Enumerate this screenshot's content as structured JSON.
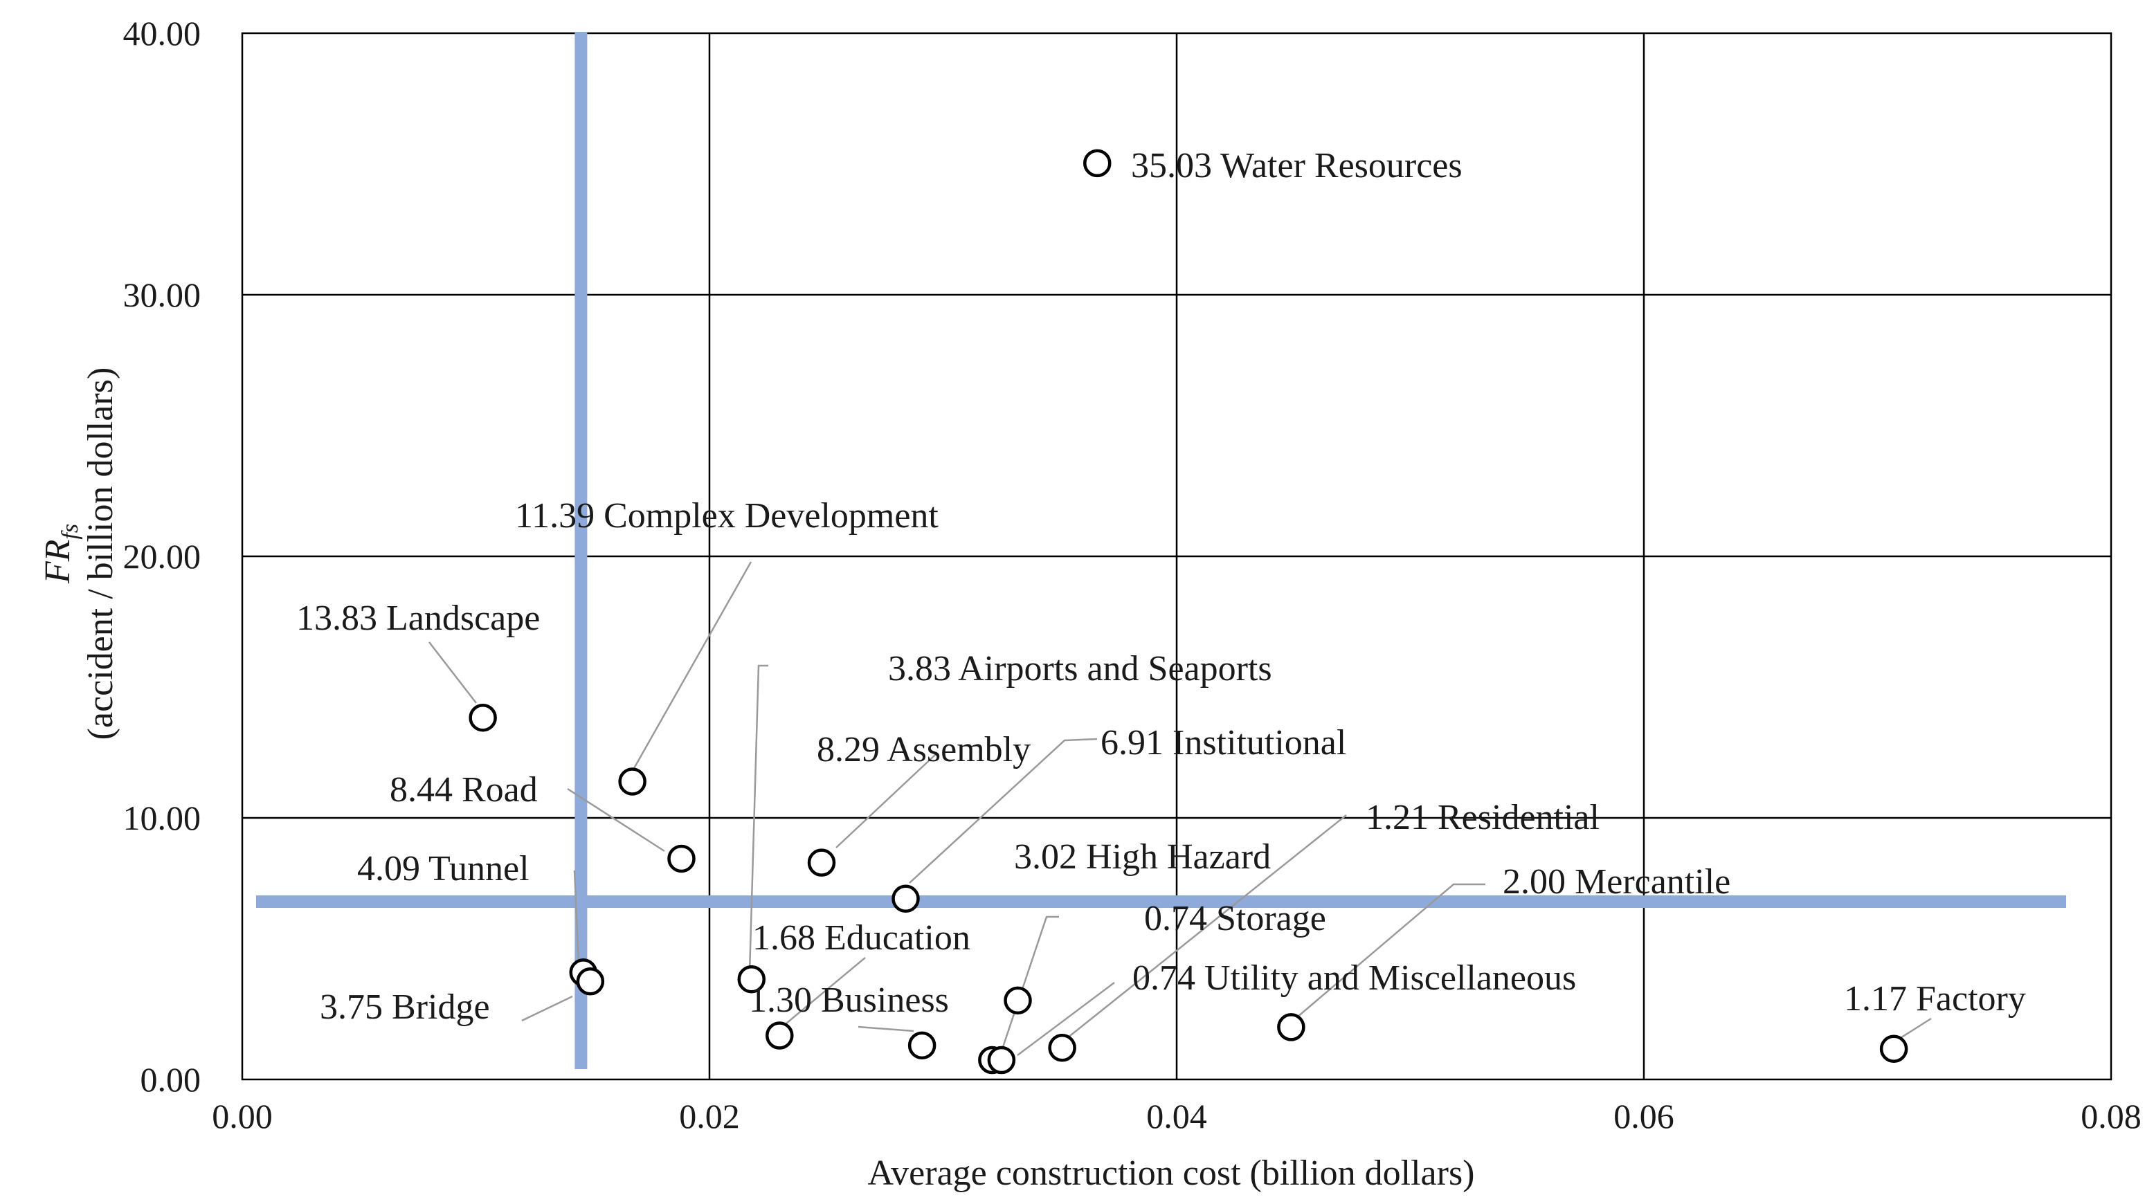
{
  "chart_data": {
    "type": "scatter",
    "title": "",
    "xlabel": "Average construction cost (billion dollars)",
    "ylabel_main": "FR",
    "ylabel_sub": "fs",
    "ylabel_unit": "(accident / billion dollars)",
    "xlim": [
      0,
      0.08
    ],
    "ylim": [
      0,
      40
    ],
    "x_ticks": [
      "0.00",
      "0.02",
      "0.04",
      "0.06",
      "0.08"
    ],
    "y_ticks": [
      "0.00",
      "10.00",
      "20.00",
      "30.00",
      "40.00"
    ],
    "grid": true,
    "reference_lines": {
      "x": 0.0145,
      "y": 6.8,
      "color": "#8eaadb"
    },
    "points": [
      {
        "label": "35.03 Water Resources",
        "value": 35.03,
        "x": 0.0366,
        "y": 35.03
      },
      {
        "label": "11.39 Complex Development",
        "value": 11.39,
        "x": 0.0167,
        "y": 11.39
      },
      {
        "label": "13.83 Landscape",
        "value": 13.83,
        "x": 0.0103,
        "y": 13.83
      },
      {
        "label": "3.83 Airports and Seaports",
        "value": 3.83,
        "x": 0.0218,
        "y": 3.83
      },
      {
        "label": "8.29 Assembly",
        "value": 8.29,
        "x": 0.0248,
        "y": 8.29
      },
      {
        "label": "6.91 Institutional",
        "value": 6.91,
        "x": 0.0284,
        "y": 6.91
      },
      {
        "label": "8.44 Road",
        "value": 8.44,
        "x": 0.0188,
        "y": 8.44
      },
      {
        "label": "1.21 Residential",
        "value": 1.21,
        "x": 0.0351,
        "y": 1.21
      },
      {
        "label": "4.09 Tunnel",
        "value": 4.09,
        "x": 0.0146,
        "y": 4.09
      },
      {
        "label": "3.02 High Hazard",
        "value": 3.02,
        "x": 0.0332,
        "y": 3.02
      },
      {
        "label": "2.00 Mercantile",
        "value": 2.0,
        "x": 0.0449,
        "y": 2.0
      },
      {
        "label": "0.74 Storage",
        "value": 0.74,
        "x": 0.0321,
        "y": 0.74
      },
      {
        "label": "1.68 Education",
        "value": 1.68,
        "x": 0.023,
        "y": 1.68
      },
      {
        "label": "0.74 Utility and Miscellaneous",
        "value": 0.74,
        "x": 0.0325,
        "y": 0.74
      },
      {
        "label": "1.30 Business",
        "value": 1.3,
        "x": 0.0291,
        "y": 1.3
      },
      {
        "label": "1.17 Factory",
        "value": 1.17,
        "x": 0.0707,
        "y": 1.17
      },
      {
        "label": "3.75 Bridge",
        "value": 3.75,
        "x": 0.0149,
        "y": 3.75
      }
    ]
  }
}
